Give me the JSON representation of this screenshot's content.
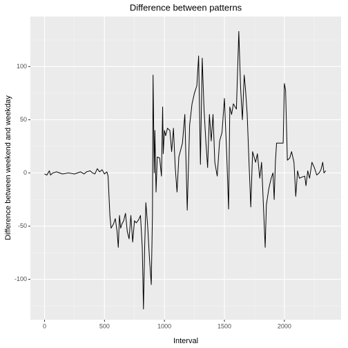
{
  "chart_data": {
    "type": "line",
    "title": "Difference between patterns",
    "x_label": "Interval",
    "y_label": "Difference between weekend and weekday",
    "xlim": [
      -118,
      2473
    ],
    "ylim": [
      -138,
      147
    ],
    "xticks": [
      0,
      500,
      1000,
      1500,
      2000
    ],
    "yticks": [
      -100,
      -50,
      0,
      50,
      100
    ],
    "grid": true,
    "color": "#000000",
    "x": [
      0,
      20,
      40,
      50,
      70,
      100,
      150,
      200,
      250,
      300,
      330,
      350,
      380,
      400,
      420,
      440,
      460,
      480,
      500,
      520,
      530,
      545,
      555,
      575,
      590,
      605,
      615,
      625,
      635,
      645,
      660,
      675,
      690,
      705,
      720,
      735,
      750,
      765,
      785,
      800,
      815,
      825,
      835,
      845,
      860,
      875,
      890,
      900,
      905,
      915,
      920,
      930,
      940,
      960,
      975,
      985,
      990,
      1000,
      1010,
      1025,
      1045,
      1060,
      1075,
      1090,
      1105,
      1120,
      1150,
      1170,
      1190,
      1210,
      1230,
      1250,
      1270,
      1285,
      1300,
      1315,
      1330,
      1345,
      1360,
      1375,
      1390,
      1405,
      1420,
      1440,
      1460,
      1480,
      1500,
      1520,
      1535,
      1545,
      1560,
      1575,
      1600,
      1620,
      1635,
      1650,
      1665,
      1675,
      1690,
      1705,
      1720,
      1735,
      1760,
      1775,
      1795,
      1810,
      1825,
      1840,
      1850,
      1870,
      1890,
      1905,
      1915,
      1925,
      1935,
      1960,
      1990,
      2000,
      2010,
      2025,
      2045,
      2060,
      2080,
      2095,
      2110,
      2125,
      2145,
      2170,
      2180,
      2195,
      2210,
      2230,
      2250,
      2270,
      2290,
      2305,
      2320,
      2330,
      2345
    ],
    "values": [
      -1,
      -2,
      2,
      -2,
      0,
      1,
      -1,
      0,
      -1,
      1,
      -1,
      1,
      2,
      0,
      -1,
      4,
      1,
      3,
      -1,
      1,
      -3,
      -40,
      -52,
      -48,
      -43,
      -55,
      -70,
      -40,
      -52,
      -48,
      -45,
      -38,
      -55,
      -62,
      -40,
      -65,
      -45,
      -47,
      -44,
      -40,
      -70,
      -128,
      -70,
      -28,
      -50,
      -80,
      -105,
      -40,
      92,
      0,
      40,
      -18,
      15,
      14,
      -3,
      62,
      18,
      40,
      35,
      42,
      40,
      20,
      42,
      5,
      -18,
      15,
      28,
      55,
      -35,
      45,
      65,
      75,
      82,
      110,
      8,
      108,
      60,
      30,
      5,
      55,
      30,
      55,
      10,
      -3,
      30,
      38,
      70,
      15,
      -34,
      62,
      55,
      65,
      60,
      133,
      80,
      50,
      92,
      80,
      55,
      10,
      -32,
      20,
      10,
      18,
      -5,
      10,
      -30,
      -70,
      -30,
      -15,
      -5,
      0,
      -25,
      10,
      28,
      28,
      28,
      84,
      78,
      12,
      14,
      20,
      10,
      -22,
      2,
      -5,
      -4,
      -3,
      -12,
      2,
      -5,
      10,
      5,
      -2,
      0,
      3,
      10,
      0,
      2
    ]
  }
}
